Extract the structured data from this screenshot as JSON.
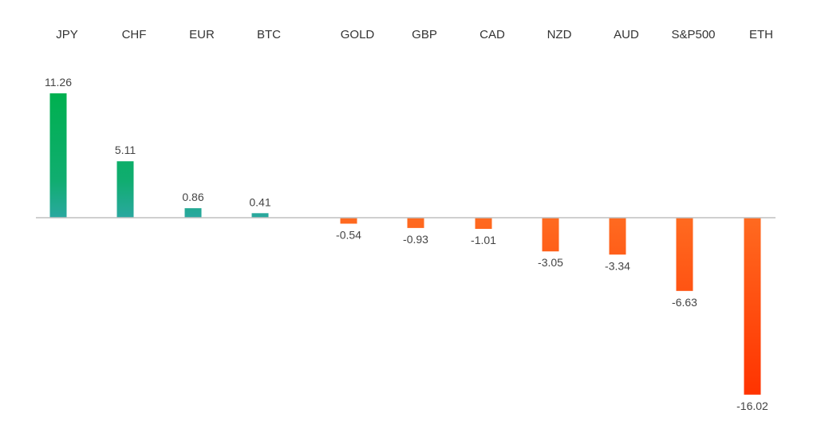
{
  "chart_data": {
    "type": "bar",
    "title": "",
    "xlabel": "",
    "ylabel": "",
    "categories": [
      "JPY",
      "CHF",
      "EUR",
      "BTC",
      "GOLD",
      "GBP",
      "CAD",
      "NZD",
      "AUD",
      "S&P500",
      "ETH"
    ],
    "values": [
      11.26,
      5.11,
      0.86,
      0.41,
      -0.54,
      -0.93,
      -1.01,
      -3.05,
      -3.34,
      -6.63,
      -16.02
    ],
    "value_labels": [
      "11.26",
      "5.11",
      "0.86",
      "0.41",
      "-0.54",
      "-0.93",
      "-1.01",
      "-3.05",
      "-3.34",
      "-6.63",
      "-16.02"
    ],
    "ylim": [
      -16.02,
      11.26
    ],
    "grid": false,
    "legend": "none",
    "colors": {
      "positive_top": "#00b050",
      "positive_base": "#2aa8a0",
      "negative_base": "#ff6a20",
      "negative_bottom": "#ff3300",
      "axis": "#bfbfbf"
    }
  }
}
